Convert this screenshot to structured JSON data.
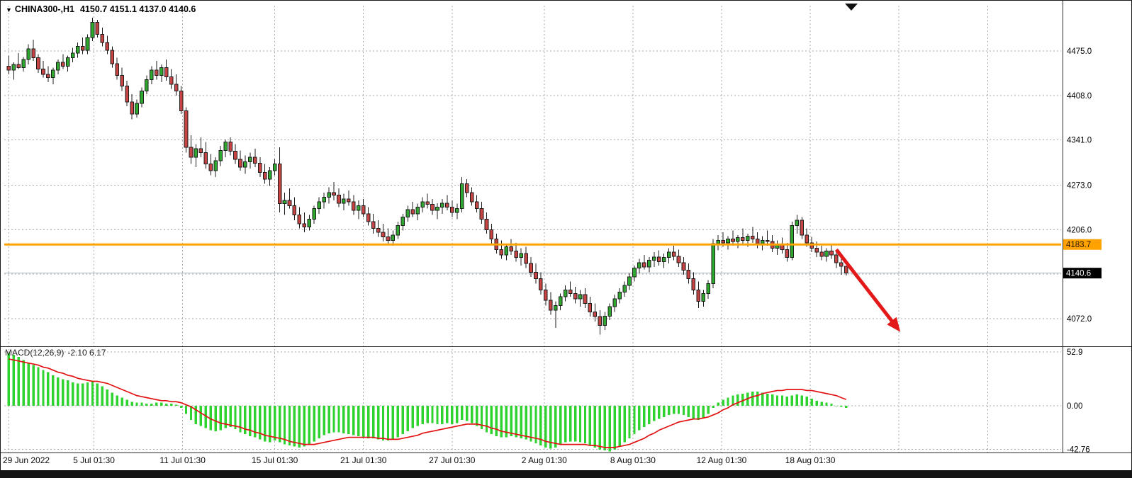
{
  "title": {
    "symbol": "CHINA300-,H1",
    "ohlc": "4150.7 4151.1 4137.0 4140.6"
  },
  "macd_label": {
    "name": "MACD(12,26,9)",
    "values": "-2.10 6.17"
  },
  "colors": {
    "up": "#2fa82f",
    "down": "#c64444",
    "outline": "#1c1c1c",
    "grid": "#a9a9a9",
    "hline": "#ffa200",
    "bid_line": "#aab6c2",
    "macd_hist": "#2fd32f",
    "macd_signal": "#e31212",
    "arrow": "#e31919",
    "badge_bid_bg": "#000000",
    "badge_bid_fg": "#ffffff"
  },
  "chart_data": {
    "type": "candlestick",
    "symbol": "CHINA300-",
    "timeframe": "H1",
    "last_ohlc": {
      "open": 4150.7,
      "high": 4151.1,
      "low": 4137.0,
      "close": 4140.6
    },
    "price_axis": {
      "tick_labels": [
        "4475.0",
        "4408.0",
        "4341.0",
        "4273.0",
        "4206.0",
        "4072.0"
      ],
      "tick_values": [
        4475,
        4408,
        4341,
        4273,
        4206,
        4072
      ],
      "grid_values": [
        4475,
        4408,
        4341,
        4273,
        4206,
        4139,
        4072
      ],
      "bid": {
        "value": 4140.6,
        "label": "4140.6"
      },
      "hline": {
        "value": 4183.7,
        "label": "4183.7"
      }
    },
    "time_axis": {
      "ticks": [
        {
          "label": "29 Jun 2022",
          "i": 0
        },
        {
          "label": "5 Jul 01:30",
          "i": 17.3
        },
        {
          "label": "11 Jul 01:30",
          "i": 35.3
        },
        {
          "label": "15 Jul 01:30",
          "i": 54
        },
        {
          "label": "21 Jul 01:30",
          "i": 72
        },
        {
          "label": "27 Jul 01:30",
          "i": 90
        },
        {
          "label": "2 Aug 01:30",
          "i": 108.7
        },
        {
          "label": "8 Aug 01:30",
          "i": 126.7
        },
        {
          "label": "12 Aug 01:30",
          "i": 144.7
        },
        {
          "label": "18 Aug 01:30",
          "i": 162.7
        }
      ],
      "future_grid_i": [
        180.7,
        198.7
      ]
    },
    "candles": [
      [
        4452,
        4468,
        4440,
        4446
      ],
      [
        4446,
        4458,
        4432,
        4455
      ],
      [
        4455,
        4472,
        4448,
        4450
      ],
      [
        4450,
        4466,
        4444,
        4462
      ],
      [
        4462,
        4485,
        4455,
        4478
      ],
      [
        4478,
        4492,
        4460,
        4465
      ],
      [
        4465,
        4470,
        4442,
        4448
      ],
      [
        4448,
        4460,
        4435,
        4440
      ],
      [
        4440,
        4452,
        4428,
        4435
      ],
      [
        4435,
        4450,
        4425,
        4446
      ],
      [
        4446,
        4462,
        4440,
        4458
      ],
      [
        4458,
        4470,
        4448,
        4452
      ],
      [
        4452,
        4468,
        4444,
        4465
      ],
      [
        4465,
        4480,
        4458,
        4472
      ],
      [
        4472,
        4488,
        4465,
        4482
      ],
      [
        4482,
        4495,
        4470,
        4476
      ],
      [
        4476,
        4500,
        4470,
        4495
      ],
      [
        4495,
        4525,
        4490,
        4518
      ],
      [
        4518,
        4522,
        4495,
        4500
      ],
      [
        4500,
        4510,
        4482,
        4488
      ],
      [
        4488,
        4498,
        4470,
        4476
      ],
      [
        4476,
        4482,
        4450,
        4456
      ],
      [
        4456,
        4465,
        4432,
        4438
      ],
      [
        4438,
        4450,
        4415,
        4422
      ],
      [
        4422,
        4430,
        4392,
        4398
      ],
      [
        4398,
        4410,
        4372,
        4380
      ],
      [
        4380,
        4402,
        4375,
        4396
      ],
      [
        4396,
        4420,
        4390,
        4415
      ],
      [
        4415,
        4438,
        4410,
        4432
      ],
      [
        4432,
        4452,
        4425,
        4446
      ],
      [
        4446,
        4460,
        4432,
        4438
      ],
      [
        4438,
        4455,
        4428,
        4450
      ],
      [
        4450,
        4462,
        4430,
        4436
      ],
      [
        4436,
        4448,
        4418,
        4425
      ],
      [
        4425,
        4440,
        4408,
        4415
      ],
      [
        4415,
        4422,
        4380,
        4385
      ],
      [
        4385,
        4390,
        4322,
        4330
      ],
      [
        4330,
        4348,
        4305,
        4315
      ],
      [
        4315,
        4335,
        4300,
        4328
      ],
      [
        4328,
        4345,
        4315,
        4322
      ],
      [
        4322,
        4338,
        4298,
        4305
      ],
      [
        4305,
        4320,
        4288,
        4295
      ],
      [
        4295,
        4315,
        4285,
        4310
      ],
      [
        4310,
        4332,
        4302,
        4325
      ],
      [
        4325,
        4342,
        4315,
        4338
      ],
      [
        4338,
        4345,
        4318,
        4324
      ],
      [
        4324,
        4335,
        4305,
        4312
      ],
      [
        4312,
        4325,
        4295,
        4300
      ],
      [
        4300,
        4318,
        4290,
        4308
      ],
      [
        4308,
        4322,
        4298,
        4315
      ],
      [
        4315,
        4328,
        4300,
        4306
      ],
      [
        4306,
        4315,
        4285,
        4292
      ],
      [
        4292,
        4305,
        4275,
        4282
      ],
      [
        4282,
        4300,
        4272,
        4295
      ],
      [
        4295,
        4312,
        4288,
        4305
      ],
      [
        4305,
        4330,
        4232,
        4245
      ],
      [
        4245,
        4262,
        4228,
        4250
      ],
      [
        4250,
        4268,
        4238,
        4242
      ],
      [
        4242,
        4255,
        4220,
        4228
      ],
      [
        4228,
        4240,
        4208,
        4215
      ],
      [
        4215,
        4232,
        4202,
        4210
      ],
      [
        4210,
        4228,
        4205,
        4222
      ],
      [
        4222,
        4242,
        4215,
        4238
      ],
      [
        4238,
        4255,
        4230,
        4248
      ],
      [
        4248,
        4262,
        4238,
        4255
      ],
      [
        4255,
        4270,
        4245,
        4262
      ],
      [
        4262,
        4278,
        4250,
        4258
      ],
      [
        4258,
        4268,
        4240,
        4246
      ],
      [
        4246,
        4260,
        4235,
        4252
      ],
      [
        4252,
        4265,
        4242,
        4248
      ],
      [
        4248,
        4258,
        4228,
        4235
      ],
      [
        4235,
        4250,
        4222,
        4242
      ],
      [
        4242,
        4252,
        4225,
        4230
      ],
      [
        4230,
        4240,
        4212,
        4218
      ],
      [
        4218,
        4230,
        4200,
        4208
      ],
      [
        4208,
        4220,
        4195,
        4202
      ],
      [
        4202,
        4215,
        4188,
        4195
      ],
      [
        4195,
        4208,
        4185,
        4190
      ],
      [
        4190,
        4205,
        4182,
        4198
      ],
      [
        4198,
        4218,
        4192,
        4212
      ],
      [
        4212,
        4230,
        4205,
        4225
      ],
      [
        4225,
        4242,
        4218,
        4236
      ],
      [
        4236,
        4248,
        4225,
        4230
      ],
      [
        4230,
        4245,
        4220,
        4240
      ],
      [
        4240,
        4255,
        4232,
        4248
      ],
      [
        4248,
        4260,
        4238,
        4244
      ],
      [
        4244,
        4252,
        4228,
        4235
      ],
      [
        4235,
        4246,
        4222,
        4240
      ],
      [
        4240,
        4252,
        4230,
        4246
      ],
      [
        4246,
        4258,
        4235,
        4240
      ],
      [
        4240,
        4250,
        4225,
        4232
      ],
      [
        4232,
        4245,
        4222,
        4238
      ],
      [
        4238,
        4285,
        4232,
        4275
      ],
      [
        4275,
        4282,
        4255,
        4262
      ],
      [
        4262,
        4270,
        4242,
        4248
      ],
      [
        4248,
        4258,
        4232,
        4238
      ],
      [
        4238,
        4248,
        4215,
        4222
      ],
      [
        4222,
        4232,
        4200,
        4206
      ],
      [
        4206,
        4215,
        4185,
        4192
      ],
      [
        4192,
        4200,
        4170,
        4176
      ],
      [
        4176,
        4190,
        4162,
        4168
      ],
      [
        4168,
        4185,
        4160,
        4180
      ],
      [
        4180,
        4192,
        4168,
        4174
      ],
      [
        4174,
        4186,
        4158,
        4164
      ],
      [
        4164,
        4178,
        4152,
        4170
      ],
      [
        4170,
        4180,
        4148,
        4155
      ],
      [
        4155,
        4165,
        4135,
        4142
      ],
      [
        4142,
        4155,
        4125,
        4132
      ],
      [
        4132,
        4142,
        4108,
        4115
      ],
      [
        4115,
        4125,
        4092,
        4100
      ],
      [
        4100,
        4112,
        4078,
        4085
      ],
      [
        4085,
        4098,
        4058,
        4092
      ],
      [
        4092,
        4110,
        4085,
        4105
      ],
      [
        4105,
        4122,
        4098,
        4115
      ],
      [
        4115,
        4128,
        4105,
        4110
      ],
      [
        4110,
        4120,
        4095,
        4102
      ],
      [
        4102,
        4115,
        4090,
        4108
      ],
      [
        4108,
        4118,
        4088,
        4095
      ],
      [
        4095,
        4105,
        4075,
        4082
      ],
      [
        4082,
        4095,
        4068,
        4075
      ],
      [
        4075,
        4085,
        4048,
        4062
      ],
      [
        4062,
        4082,
        4055,
        4076
      ],
      [
        4076,
        4095,
        4070,
        4090
      ],
      [
        4090,
        4108,
        4082,
        4102
      ],
      [
        4102,
        4118,
        4095,
        4112
      ],
      [
        4112,
        4128,
        4105,
        4122
      ],
      [
        4122,
        4140,
        4115,
        4135
      ],
      [
        4135,
        4152,
        4128,
        4148
      ],
      [
        4148,
        4162,
        4140,
        4156
      ],
      [
        4156,
        4168,
        4146,
        4150
      ],
      [
        4150,
        4165,
        4142,
        4160
      ],
      [
        4160,
        4172,
        4150,
        4165
      ],
      [
        4165,
        4175,
        4152,
        4158
      ],
      [
        4158,
        4170,
        4148,
        4164
      ],
      [
        4164,
        4178,
        4155,
        4172
      ],
      [
        4172,
        4182,
        4160,
        4166
      ],
      [
        4166,
        4176,
        4150,
        4156
      ],
      [
        4156,
        4165,
        4138,
        4145
      ],
      [
        4145,
        4155,
        4125,
        4132
      ],
      [
        4132,
        4142,
        4108,
        4115
      ],
      [
        4115,
        4128,
        4088,
        4098
      ],
      [
        4098,
        4115,
        4090,
        4110
      ],
      [
        4110,
        4130,
        4102,
        4125
      ],
      [
        4125,
        4192,
        4118,
        4185
      ],
      [
        4185,
        4198,
        4175,
        4190
      ],
      [
        4190,
        4202,
        4180,
        4186
      ],
      [
        4186,
        4196,
        4176,
        4192
      ],
      [
        4192,
        4205,
        4182,
        4188
      ],
      [
        4188,
        4198,
        4178,
        4194
      ],
      [
        4194,
        4208,
        4185,
        4190
      ],
      [
        4190,
        4200,
        4180,
        4196
      ],
      [
        4196,
        4210,
        4186,
        4192
      ],
      [
        4192,
        4202,
        4178,
        4185
      ],
      [
        4185,
        4196,
        4175,
        4190
      ],
      [
        4190,
        4205,
        4182,
        4188
      ],
      [
        4188,
        4198,
        4172,
        4178
      ],
      [
        4178,
        4190,
        4168,
        4184
      ],
      [
        4184,
        4194,
        4170,
        4176
      ],
      [
        4176,
        4186,
        4158,
        4164
      ],
      [
        4164,
        4218,
        4160,
        4212
      ],
      [
        4212,
        4228,
        4200,
        4220
      ],
      [
        4220,
        4225,
        4192,
        4198
      ],
      [
        4198,
        4208,
        4180,
        4186
      ],
      [
        4186,
        4195,
        4172,
        4178
      ],
      [
        4178,
        4188,
        4165,
        4172
      ],
      [
        4172,
        4182,
        4160,
        4166
      ],
      [
        4166,
        4178,
        4158,
        4174
      ],
      [
        4174,
        4184,
        4162,
        4168
      ],
      [
        4168,
        4176,
        4148,
        4156
      ],
      [
        4156,
        4165,
        4138,
        4150.7
      ],
      [
        4150.7,
        4151.1,
        4137.0,
        4140.6
      ]
    ],
    "macd": {
      "params": "12,26,9",
      "tick_labels": [
        "52.9",
        "0.00",
        "-42.76"
      ],
      "tick_values": [
        52.9,
        0,
        -42.76
      ],
      "histogram": [
        52,
        50,
        48,
        45,
        42,
        40,
        38,
        35,
        33,
        30,
        28,
        26,
        25,
        23,
        22,
        22,
        23,
        24,
        22,
        19,
        16,
        13,
        10,
        8,
        6,
        4,
        3,
        3,
        2,
        2,
        3,
        3,
        2,
        2,
        1,
        -2,
        -8,
        -14,
        -18,
        -20,
        -22,
        -24,
        -25,
        -24,
        -22,
        -21,
        -23,
        -26,
        -28,
        -30,
        -31,
        -33,
        -35,
        -36,
        -34,
        -36,
        -38,
        -39,
        -40,
        -41,
        -40,
        -38,
        -35,
        -32,
        -29,
        -27,
        -26,
        -26,
        -27,
        -28,
        -29,
        -30,
        -31,
        -32,
        -32,
        -33,
        -34,
        -34,
        -33,
        -31,
        -28,
        -25,
        -22,
        -20,
        -18,
        -17,
        -17,
        -18,
        -18,
        -17,
        -18,
        -17,
        -14,
        -15,
        -17,
        -20,
        -23,
        -26,
        -28,
        -30,
        -31,
        -31,
        -30,
        -31,
        -32,
        -33,
        -35,
        -37,
        -39,
        -41,
        -42,
        -41,
        -38,
        -36,
        -35,
        -35,
        -36,
        -37,
        -39,
        -41,
        -43,
        -44,
        -45,
        -43,
        -40,
        -36,
        -32,
        -28,
        -24,
        -21,
        -18,
        -15,
        -13,
        -11,
        -9,
        -8,
        -8,
        -9,
        -11,
        -13,
        -14,
        -12,
        -8,
        -2,
        3,
        6,
        8,
        10,
        11,
        12,
        13,
        14,
        14,
        13,
        12,
        11,
        10,
        10,
        9,
        10,
        11,
        10,
        9,
        7,
        5,
        4,
        3,
        2,
        0,
        -1,
        -2.1
      ],
      "signal": [
        46,
        45,
        44,
        43,
        42,
        41,
        40,
        38,
        37,
        35,
        33,
        32,
        30,
        29,
        27,
        26,
        25,
        24,
        24,
        23,
        22,
        20,
        18,
        16,
        14,
        12,
        10,
        9,
        8,
        7,
        6,
        5,
        5,
        4,
        4,
        3,
        1,
        -1,
        -4,
        -7,
        -10,
        -13,
        -15,
        -17,
        -18,
        -19,
        -20,
        -21,
        -23,
        -24,
        -26,
        -27,
        -29,
        -30,
        -31,
        -32,
        -33,
        -35,
        -36,
        -37,
        -38,
        -38,
        -38,
        -37,
        -36,
        -35,
        -34,
        -33,
        -32,
        -31,
        -31,
        -31,
        -31,
        -31,
        -31,
        -32,
        -32,
        -33,
        -33,
        -33,
        -32,
        -31,
        -30,
        -29,
        -27,
        -26,
        -25,
        -24,
        -23,
        -22,
        -21,
        -20,
        -19,
        -18,
        -18,
        -18,
        -19,
        -20,
        -22,
        -23,
        -25,
        -26,
        -27,
        -28,
        -29,
        -30,
        -31,
        -32,
        -33,
        -35,
        -36,
        -37,
        -38,
        -38,
        -38,
        -38,
        -38,
        -38,
        -39,
        -39,
        -40,
        -41,
        -41,
        -41,
        -40,
        -39,
        -38,
        -36,
        -34,
        -32,
        -29,
        -27,
        -24,
        -22,
        -20,
        -18,
        -16,
        -15,
        -14,
        -13,
        -13,
        -12,
        -11,
        -9,
        -7,
        -4,
        -2,
        1,
        3,
        5,
        7,
        9,
        10,
        12,
        13,
        14,
        15,
        15,
        16,
        16,
        16,
        16,
        15,
        15,
        14,
        13,
        12,
        11,
        10,
        8,
        6.17
      ]
    },
    "arrow": {
      "from": {
        "i": 168,
        "price": 4176
      },
      "to": {
        "i": 181,
        "price": 4052
      }
    }
  }
}
